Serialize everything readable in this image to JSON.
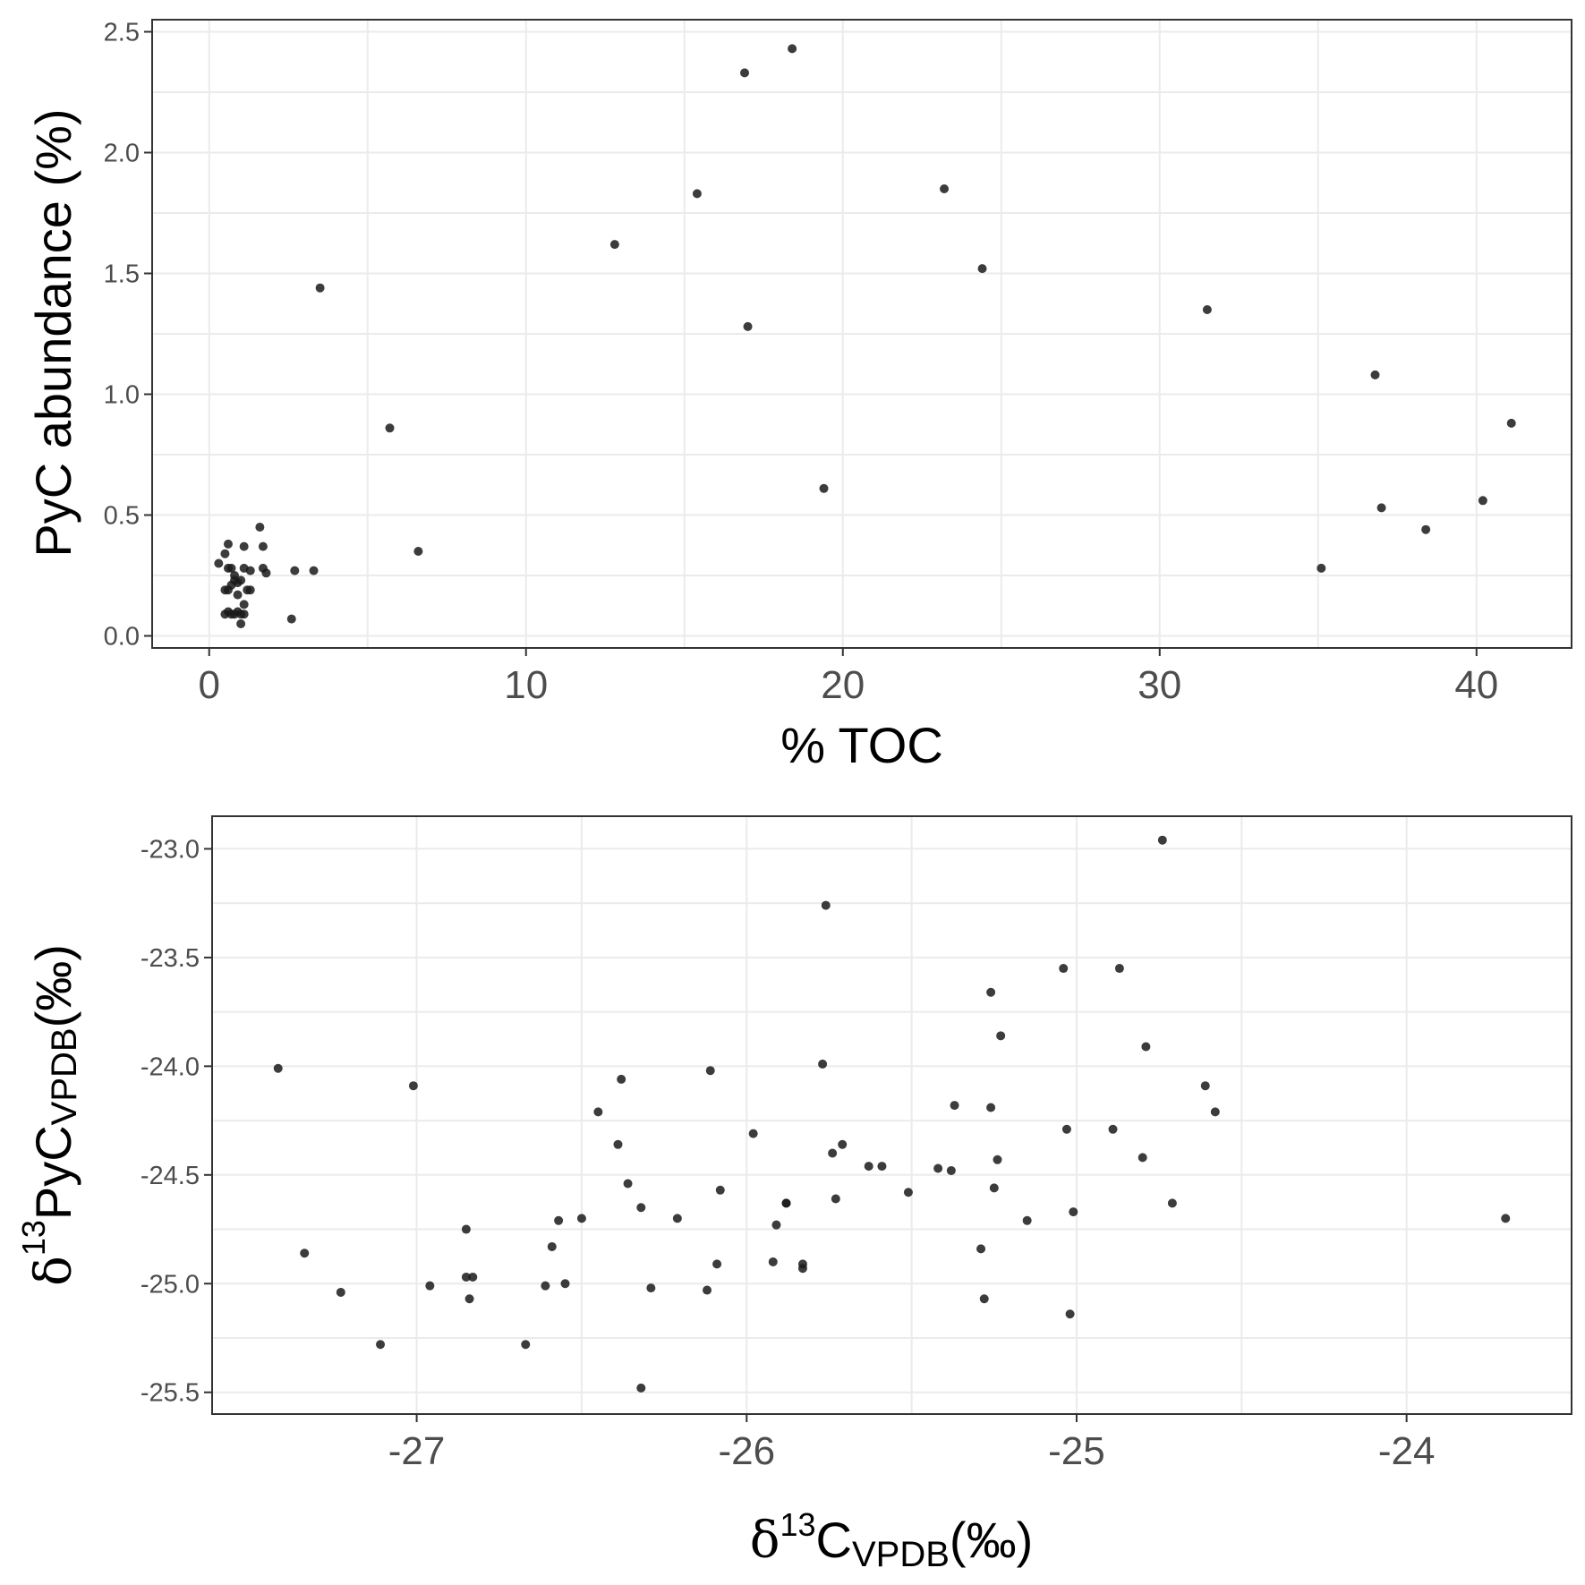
{
  "chart_data": [
    {
      "type": "scatter",
      "xlabel": "% TOC",
      "ylabel": "PyC abundance (%)",
      "xlim": [
        -1.8,
        43.0
      ],
      "ylim": [
        -0.05,
        2.55
      ],
      "x_ticks": [
        0,
        10,
        20,
        30,
        40
      ],
      "y_ticks": [
        0.0,
        0.5,
        1.0,
        1.5,
        2.0,
        2.5
      ],
      "x_tick_labels": [
        "0",
        "10",
        "20",
        "30",
        "40"
      ],
      "y_tick_labels": [
        "0.0",
        "0.5",
        "1.0",
        "1.5",
        "2.0",
        "2.5"
      ],
      "grid": true,
      "points": [
        [
          18.4,
          2.43
        ],
        [
          16.9,
          2.33
        ],
        [
          15.4,
          1.83
        ],
        [
          23.2,
          1.85
        ],
        [
          12.8,
          1.62
        ],
        [
          24.4,
          1.52
        ],
        [
          3.5,
          1.44
        ],
        [
          31.5,
          1.35
        ],
        [
          17.0,
          1.28
        ],
        [
          36.8,
          1.08
        ],
        [
          41.1,
          0.88
        ],
        [
          5.7,
          0.86
        ],
        [
          19.4,
          0.61
        ],
        [
          40.2,
          0.56
        ],
        [
          37.0,
          0.53
        ],
        [
          38.4,
          0.44
        ],
        [
          35.1,
          0.28
        ],
        [
          6.6,
          0.35
        ],
        [
          3.3,
          0.27
        ],
        [
          2.7,
          0.27
        ],
        [
          1.6,
          0.45
        ],
        [
          1.7,
          0.37
        ],
        [
          1.7,
          0.28
        ],
        [
          1.8,
          0.26
        ],
        [
          2.6,
          0.07
        ],
        [
          0.3,
          0.3
        ],
        [
          0.5,
          0.34
        ],
        [
          0.6,
          0.38
        ],
        [
          0.7,
          0.28
        ],
        [
          0.8,
          0.25
        ],
        [
          0.9,
          0.22
        ],
        [
          0.7,
          0.21
        ],
        [
          0.5,
          0.19
        ],
        [
          0.6,
          0.19
        ],
        [
          0.9,
          0.17
        ],
        [
          0.8,
          0.23
        ],
        [
          0.6,
          0.1
        ],
        [
          0.7,
          0.09
        ],
        [
          0.8,
          0.09
        ],
        [
          0.9,
          0.1
        ],
        [
          1.0,
          0.05
        ],
        [
          1.0,
          0.09
        ],
        [
          1.1,
          0.13
        ],
        [
          1.1,
          0.28
        ],
        [
          1.1,
          0.37
        ],
        [
          1.2,
          0.19
        ],
        [
          1.3,
          0.19
        ],
        [
          1.3,
          0.27
        ],
        [
          1.1,
          0.09
        ],
        [
          0.5,
          0.09
        ],
        [
          0.6,
          0.28
        ],
        [
          1.0,
          0.23
        ]
      ]
    },
    {
      "type": "scatter",
      "xlabel": "δ13CVPDB(‰)",
      "xlabel_parts": {
        "greek": "δ",
        "sup": "13",
        "base": "C",
        "sub": "VPDB",
        "unit": "(‰)"
      },
      "ylabel": "δ13PyCVPDB(‰)",
      "ylabel_parts": {
        "greek": "δ",
        "sup": "13",
        "base": "PyC",
        "sub": "VPDB",
        "unit": "(‰)"
      },
      "xlim": [
        -27.62,
        -23.5
      ],
      "ylim": [
        -25.6,
        -22.85
      ],
      "x_ticks": [
        -27,
        -26,
        -25,
        -24
      ],
      "y_ticks": [
        -23.0,
        -23.5,
        -24.0,
        -24.5,
        -25.0,
        -25.5
      ],
      "x_tick_labels": [
        "-27",
        "-26",
        "-25",
        "-24"
      ],
      "y_tick_labels": [
        "-23.0",
        "-23.5",
        "-24.0",
        "-24.5",
        "-25.0",
        "-25.5"
      ],
      "grid": true,
      "points": [
        [
          -27.42,
          -24.01
        ],
        [
          -27.34,
          -24.86
        ],
        [
          -27.23,
          -25.04
        ],
        [
          -27.11,
          -25.28
        ],
        [
          -27.01,
          -24.09
        ],
        [
          -26.96,
          -25.01
        ],
        [
          -26.85,
          -24.75
        ],
        [
          -26.85,
          -24.97
        ],
        [
          -26.84,
          -25.07
        ],
        [
          -26.83,
          -24.97
        ],
        [
          -26.67,
          -25.28
        ],
        [
          -26.61,
          -25.01
        ],
        [
          -26.59,
          -24.83
        ],
        [
          -26.57,
          -24.71
        ],
        [
          -26.55,
          -25.0
        ],
        [
          -26.5,
          -24.7
        ],
        [
          -26.45,
          -24.21
        ],
        [
          -26.39,
          -24.36
        ],
        [
          -26.38,
          -24.06
        ],
        [
          -26.36,
          -24.54
        ],
        [
          -26.32,
          -24.65
        ],
        [
          -26.32,
          -25.48
        ],
        [
          -26.29,
          -25.02
        ],
        [
          -26.21,
          -24.7
        ],
        [
          -26.12,
          -25.03
        ],
        [
          -26.11,
          -24.02
        ],
        [
          -26.09,
          -24.91
        ],
        [
          -26.08,
          -24.57
        ],
        [
          -25.98,
          -24.31
        ],
        [
          -25.92,
          -24.9
        ],
        [
          -25.91,
          -24.73
        ],
        [
          -25.88,
          -24.63
        ],
        [
          -25.88,
          -24.63
        ],
        [
          -25.83,
          -24.91
        ],
        [
          -25.83,
          -24.93
        ],
        [
          -25.77,
          -23.99
        ],
        [
          -25.76,
          -23.26
        ],
        [
          -25.74,
          -24.4
        ],
        [
          -25.73,
          -24.61
        ],
        [
          -25.71,
          -24.36
        ],
        [
          -25.63,
          -24.46
        ],
        [
          -25.59,
          -24.46
        ],
        [
          -25.51,
          -24.58
        ],
        [
          -25.42,
          -24.47
        ],
        [
          -25.38,
          -24.48
        ],
        [
          -25.37,
          -24.18
        ],
        [
          -25.29,
          -24.84
        ],
        [
          -25.28,
          -25.07
        ],
        [
          -25.26,
          -24.19
        ],
        [
          -25.26,
          -23.66
        ],
        [
          -25.25,
          -24.56
        ],
        [
          -25.24,
          -24.43
        ],
        [
          -25.23,
          -23.86
        ],
        [
          -25.15,
          -24.71
        ],
        [
          -25.04,
          -23.55
        ],
        [
          -25.03,
          -24.29
        ],
        [
          -25.02,
          -25.14
        ],
        [
          -25.01,
          -24.67
        ],
        [
          -24.89,
          -24.29
        ],
        [
          -24.87,
          -23.55
        ],
        [
          -24.8,
          -24.42
        ],
        [
          -24.79,
          -23.91
        ],
        [
          -24.74,
          -22.96
        ],
        [
          -24.71,
          -24.63
        ],
        [
          -24.61,
          -24.09
        ],
        [
          -24.58,
          -24.21
        ],
        [
          -23.7,
          -24.7
        ]
      ]
    }
  ]
}
